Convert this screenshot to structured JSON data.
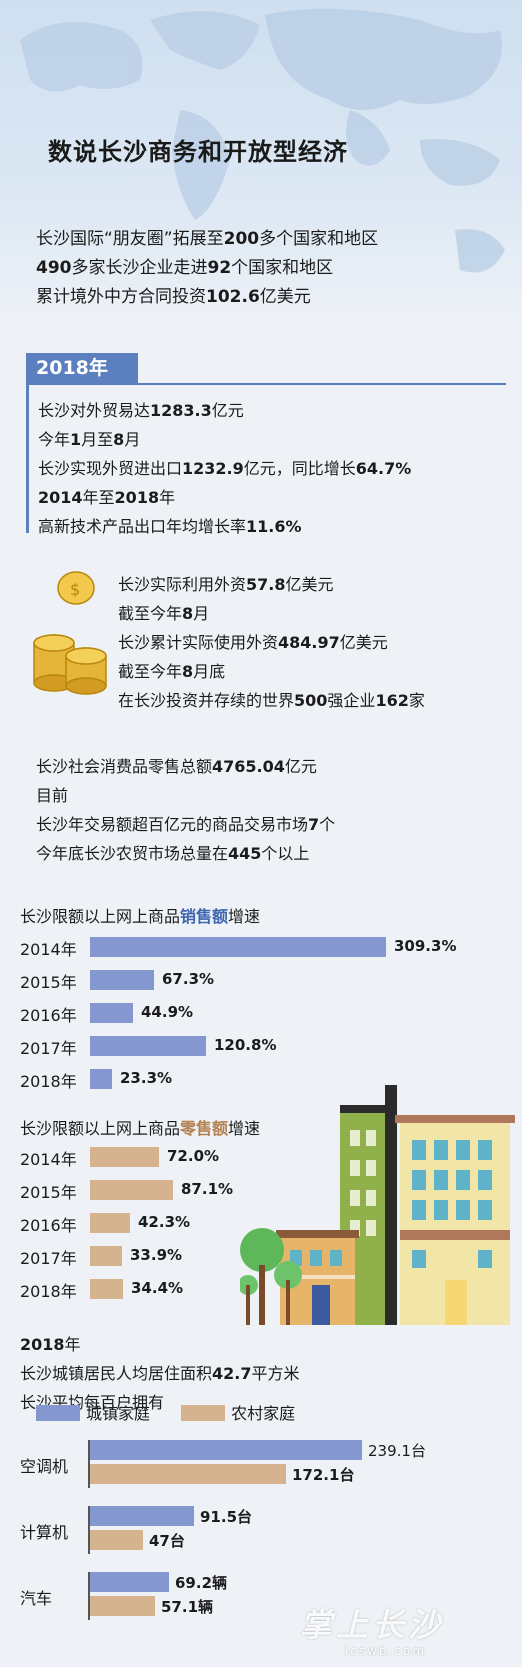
{
  "title": "数说长沙商务和开放型经济",
  "intro": [
    {
      "pre": "长沙国际“朋友圈”拓展至",
      "num": "200",
      "post": "多个国家和地区"
    },
    {
      "pre": "",
      "num": "490",
      "post": "多家长沙企业走进92个国家和地区",
      "num2": "92"
    },
    {
      "pre": "累计境外中方合同投资",
      "num": "102.6",
      "post": "亿美元"
    }
  ],
  "year_tag": "2018年",
  "block1": [
    "长沙对外贸易达1283.3亿元",
    "今年1月至8月",
    "长沙实现外贸进出口1232.9亿元，同比增长64.7%",
    "2014年至2018年",
    "高新技术产品出口年均增长率11.6%"
  ],
  "block2": [
    "长沙实际利用外资57.8亿美元",
    "截至今年8月",
    "长沙累计实际使用外资484.97亿美元",
    "截至今年8月底",
    "在长沙投资并存续的世界500强企业162家"
  ],
  "block3": [
    "长沙社会消费品零售总额4765.04亿元",
    "目前",
    "长沙年交易额超百亿元的商品交易市场7个",
    "今年底长沙农贸市场总量在445个以上"
  ],
  "chart1_title": {
    "pre": "长沙限额以上网上商品",
    "hl": "销售额",
    "post": "增速"
  },
  "chart2_title": {
    "pre": "长沙限额以上网上商品",
    "hl": "零售额",
    "post": "增速"
  },
  "block4": [
    "2018年",
    "长沙城镇居民人均居住面积42.7平方米",
    "长沙平均每百户拥有"
  ],
  "legend": [
    "城镇家庭",
    "农村家庭"
  ],
  "colors": {
    "accent": "#5b7fbf",
    "urban": "#8497cf",
    "rural": "#d5b38e"
  },
  "watermark": "掌上长沙",
  "watermark_sub": "icswb.com",
  "chart_data": [
    {
      "type": "bar",
      "orientation": "horizontal",
      "title": "长沙限额以上网上商品销售额增速",
      "categories": [
        "2014年",
        "2015年",
        "2016年",
        "2017年",
        "2018年"
      ],
      "values": [
        309.3,
        67.3,
        44.9,
        120.8,
        23.3
      ],
      "value_labels": [
        "309.3%",
        "67.3%",
        "44.9%",
        "120.8%",
        "23.3%"
      ],
      "unit": "%"
    },
    {
      "type": "bar",
      "orientation": "horizontal",
      "title": "长沙限额以上网上商品零售额增速",
      "categories": [
        "2014年",
        "2015年",
        "2016年",
        "2017年",
        "2018年"
      ],
      "values": [
        72.0,
        87.1,
        42.3,
        33.9,
        34.4
      ],
      "value_labels": [
        "72.0%",
        "87.1%",
        "42.3%",
        "33.9%",
        "34.4%"
      ],
      "unit": "%"
    },
    {
      "type": "bar",
      "orientation": "horizontal",
      "categories": [
        "空调机",
        "计算机",
        "汽车"
      ],
      "series": [
        {
          "name": "城镇家庭",
          "values": [
            239.1,
            91.5,
            69.2
          ],
          "value_labels": [
            "239.1台",
            "91.5台",
            "69.2辆"
          ]
        },
        {
          "name": "农村家庭",
          "values": [
            172.1,
            47,
            57.1
          ],
          "value_labels": [
            "172.1台",
            "47台",
            "57.1辆"
          ]
        }
      ]
    }
  ]
}
